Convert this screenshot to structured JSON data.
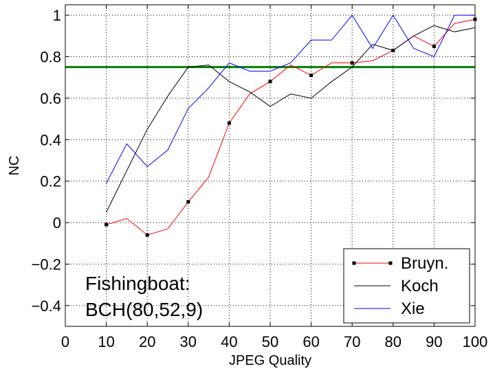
{
  "chart_data": {
    "type": "line",
    "xlabel": "JPEG Quality",
    "ylabel": "NC",
    "xlim": [
      0,
      100
    ],
    "ylim": [
      -0.5,
      1.05
    ],
    "xticks": [
      0,
      10,
      20,
      30,
      40,
      50,
      60,
      70,
      80,
      90,
      100
    ],
    "yticks": [
      -0.4,
      -0.2,
      0,
      0.2,
      0.4,
      0.6,
      0.8,
      1
    ],
    "xtick_labels": [
      "0",
      "10",
      "20",
      "30",
      "40",
      "50",
      "60",
      "70",
      "80",
      "90",
      "100"
    ],
    "ytick_labels": [
      "−0.4",
      "−0.2",
      "0",
      "0.2",
      "0.4",
      "0.6",
      "0.8",
      "1"
    ],
    "grid": true,
    "legend_position": "bottom-right",
    "threshold": {
      "y": 0.75,
      "color": "#008000"
    },
    "annotation": [
      "Fishingboat:",
      "BCH(80,52,9)"
    ],
    "series": [
      {
        "name": "Bruyn.",
        "color": "#ff0000",
        "marker": "square",
        "marker_color": "#000000",
        "x": [
          10,
          15,
          20,
          25,
          30,
          35,
          40,
          45,
          50,
          55,
          60,
          65,
          70,
          75,
          80,
          85,
          90,
          95,
          100
        ],
        "y": [
          -0.01,
          0.02,
          -0.06,
          -0.03,
          0.1,
          0.22,
          0.48,
          0.62,
          0.68,
          0.76,
          0.71,
          0.77,
          0.77,
          0.78,
          0.83,
          0.9,
          0.85,
          0.96,
          0.98
        ],
        "marker_x": [
          10,
          20,
          30,
          40,
          50,
          60,
          70,
          80,
          90,
          100
        ]
      },
      {
        "name": "Koch",
        "color": "#000000",
        "x": [
          10,
          15,
          20,
          25,
          30,
          35,
          40,
          45,
          50,
          55,
          60,
          65,
          70,
          75,
          80,
          85,
          90,
          95,
          100
        ],
        "y": [
          0.05,
          0.25,
          0.45,
          0.61,
          0.75,
          0.76,
          0.68,
          0.63,
          0.56,
          0.62,
          0.6,
          0.68,
          0.75,
          0.86,
          0.83,
          0.9,
          0.95,
          0.92,
          0.94
        ]
      },
      {
        "name": "Xie",
        "color": "#0000ff",
        "x": [
          10,
          15,
          20,
          25,
          30,
          35,
          40,
          45,
          50,
          55,
          60,
          65,
          70,
          75,
          80,
          85,
          90,
          95,
          100
        ],
        "y": [
          0.19,
          0.38,
          0.27,
          0.35,
          0.55,
          0.65,
          0.77,
          0.73,
          0.73,
          0.77,
          0.88,
          0.88,
          1.0,
          0.84,
          1.0,
          0.84,
          0.8,
          1.0,
          1.0
        ]
      }
    ]
  }
}
